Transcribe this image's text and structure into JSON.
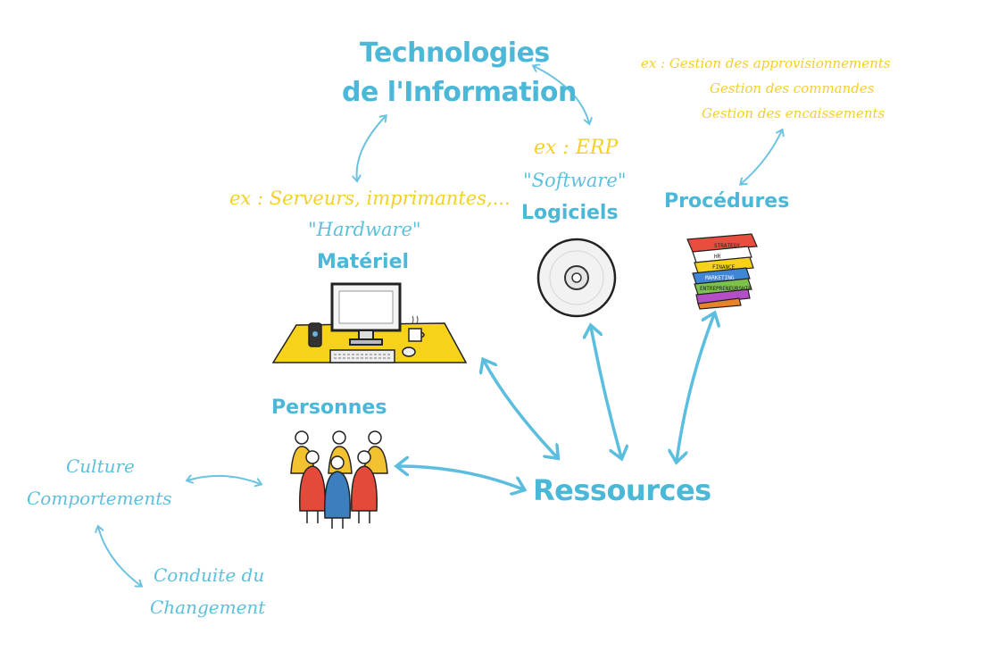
{
  "tech": {
    "line1": "Technologies",
    "line2": "de l'Information"
  },
  "hardware": {
    "example": "ex : Serveurs, imprimantes,...",
    "quote": "\"Hardware\"",
    "title": "Matériel"
  },
  "software": {
    "example": "ex : ERP",
    "quote": "\"Software\"",
    "title": "Logiciels"
  },
  "procedures": {
    "examples": [
      "ex : Gestion des approvisionnements",
      "Gestion des commandes",
      "Gestion des encaissements"
    ],
    "title": "Procédures",
    "book_labels": [
      "STRATEGY",
      "HR",
      "FINANCE",
      "MARKETING",
      "ENTREPRENEURSHIP"
    ]
  },
  "people": {
    "title": "Personnes"
  },
  "resources": {
    "title": "Ressources"
  },
  "culture": {
    "line1": "Culture",
    "line2": "Comportements"
  },
  "change": {
    "line1": "Conduite du",
    "line2": "Changement"
  },
  "colors": {
    "accent_blue": "#4bb8d8",
    "example_yellow": "#f3cf2c",
    "desk_yellow": "#f6d31a"
  }
}
